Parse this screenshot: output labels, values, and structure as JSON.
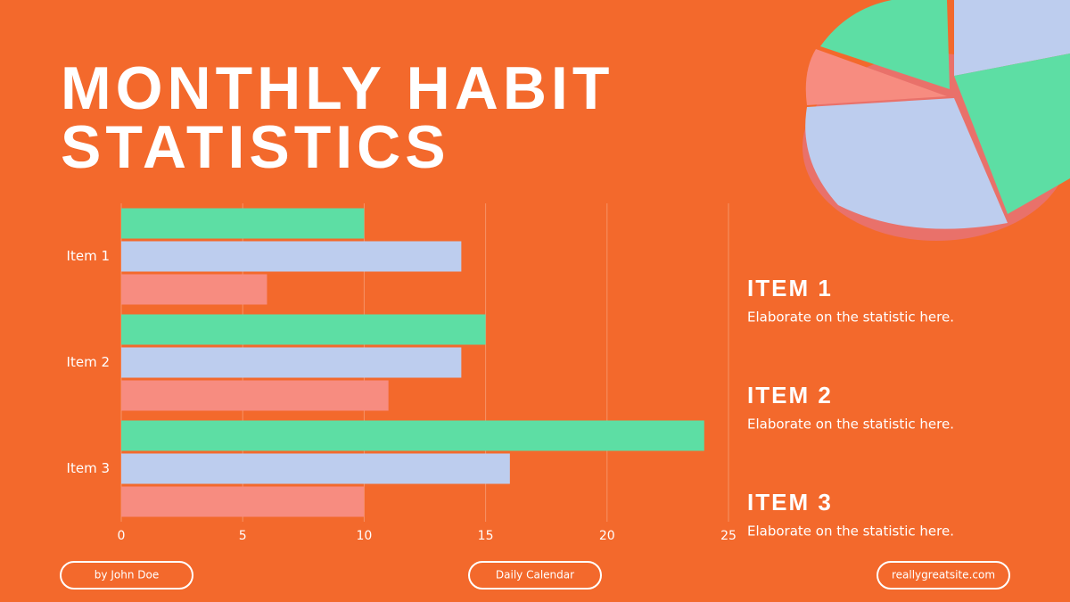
{
  "title": "MONTHLY HABIT STATISTICS",
  "chart_data": {
    "type": "bar",
    "orientation": "horizontal",
    "categories": [
      "Item 1",
      "Item 2",
      "Item 3"
    ],
    "series": [
      {
        "color": "#5ddea4",
        "values": [
          10,
          15,
          24
        ]
      },
      {
        "color": "#bdcdee",
        "values": [
          14,
          14,
          16
        ]
      },
      {
        "color": "#f78c80",
        "values": [
          6,
          11,
          10
        ]
      }
    ],
    "xlim": [
      0,
      25
    ],
    "xticks": [
      0,
      5,
      10,
      15,
      20,
      25
    ],
    "grid": true
  },
  "items": [
    {
      "heading": "ITEM 1",
      "text": "Elaborate on the statistic here."
    },
    {
      "heading": "ITEM 2",
      "text": "Elaborate on the statistic here."
    },
    {
      "heading": "ITEM 3",
      "text": "Elaborate on the statistic here."
    }
  ],
  "footer": {
    "author": "by John Doe",
    "center": "Daily Calendar",
    "site": "reallygreatsite.com"
  }
}
